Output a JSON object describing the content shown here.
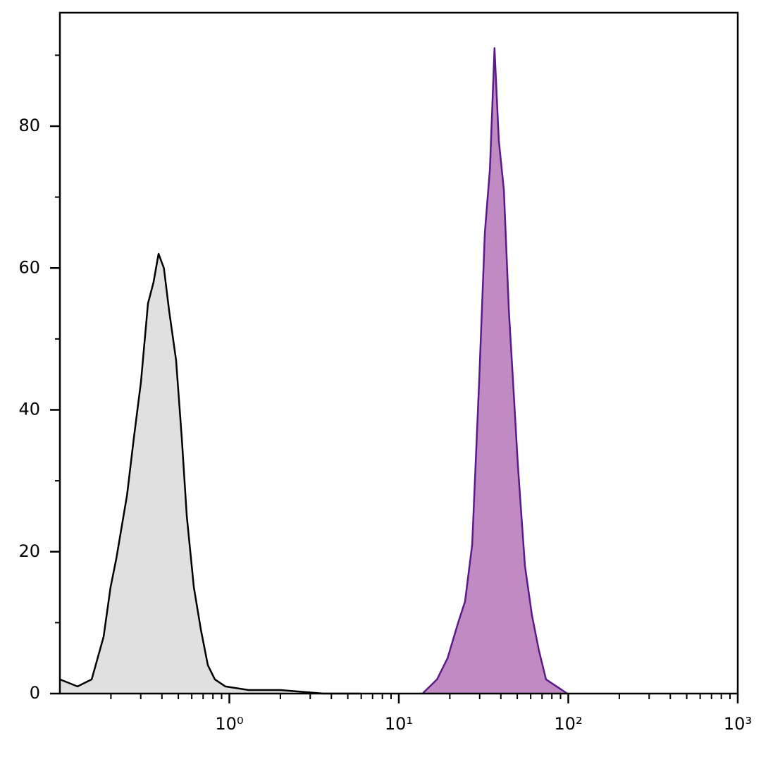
{
  "chart_data": {
    "type": "histogram-overlay",
    "xscale": "log",
    "xlim": [
      0.1,
      1000
    ],
    "ylim": [
      0,
      96
    ],
    "xticks": [
      {
        "value": 1,
        "label": "10⁰"
      },
      {
        "value": 10,
        "label": "10¹"
      },
      {
        "value": 100,
        "label": "10²"
      },
      {
        "value": 1000,
        "label": "10³"
      }
    ],
    "xminorticks": [
      0.2,
      0.3,
      0.4,
      0.5,
      0.6,
      0.7,
      0.8,
      0.9,
      2,
      3,
      4,
      5,
      6,
      7,
      8,
      9,
      20,
      30,
      40,
      50,
      60,
      70,
      80,
      90,
      200,
      300,
      400,
      500,
      600,
      700,
      800,
      900
    ],
    "yticks": [
      0,
      20,
      40,
      60,
      80
    ],
    "yminorticks": [
      10,
      30,
      50,
      70,
      90
    ],
    "series": [
      {
        "color": "#000000",
        "fill": "#e0e0e0",
        "x": [
          0.1,
          0.127,
          0.154,
          0.181,
          0.199,
          0.215,
          0.249,
          0.273,
          0.301,
          0.331,
          0.357,
          0.382,
          0.411,
          0.441,
          0.485,
          0.524,
          0.561,
          0.617,
          0.679,
          0.747,
          0.822,
          0.948,
          1.3,
          2,
          3.6,
          5.9
        ],
        "values": [
          2,
          1,
          2,
          8,
          15,
          19,
          28,
          36,
          44,
          55,
          58,
          62,
          60,
          54,
          47,
          36,
          25,
          15,
          9,
          4,
          2,
          1,
          0.5,
          0.5,
          0,
          0
        ]
      },
      {
        "color": "#5b1a8c",
        "fill": "#c08ac2",
        "x": [
          13.8,
          16.8,
          19.4,
          22.4,
          24.6,
          27.1,
          29.8,
          32.2,
          34.5,
          36.7,
          38.9,
          41.7,
          44.6,
          47.2,
          50.5,
          55.5,
          61.1,
          67.2,
          73.9,
          85.4,
          98.7
        ],
        "values": [
          0,
          2,
          5,
          10,
          13,
          21,
          44,
          65,
          74,
          91,
          78,
          71,
          54,
          44,
          32,
          18,
          11,
          6,
          2,
          1,
          0
        ]
      }
    ]
  }
}
